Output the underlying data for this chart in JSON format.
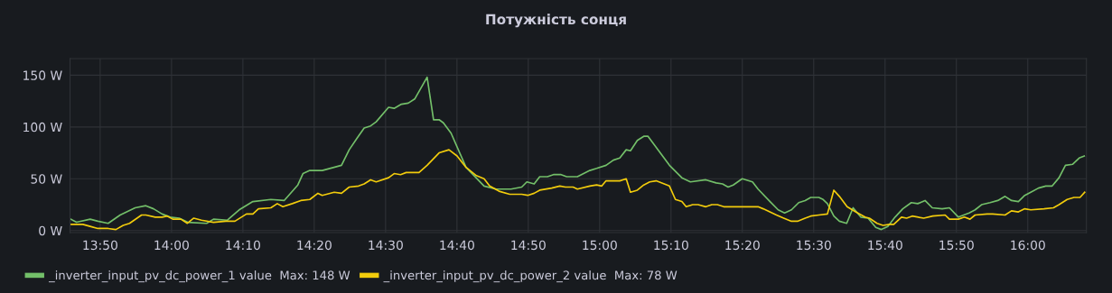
{
  "chart_data": {
    "type": "line",
    "title": "Потужність сонця",
    "xlim": [
      13.763,
      16.137
    ],
    "xticks": [
      {
        "value": 13.8333,
        "label": "13:50"
      },
      {
        "value": 14,
        "label": "14:00"
      },
      {
        "value": 14.1667,
        "label": "14:10"
      },
      {
        "value": 14.3333,
        "label": "14:20"
      },
      {
        "value": 14.5,
        "label": "14:30"
      },
      {
        "value": 14.6667,
        "label": "14:40"
      },
      {
        "value": 14.8333,
        "label": "14:50"
      },
      {
        "value": 15,
        "label": "15:00"
      },
      {
        "value": 15.1667,
        "label": "15:10"
      },
      {
        "value": 15.3333,
        "label": "15:20"
      },
      {
        "value": 15.5,
        "label": "15:30"
      },
      {
        "value": 15.6667,
        "label": "15:40"
      },
      {
        "value": 15.8333,
        "label": "15:50"
      },
      {
        "value": 16,
        "label": "16:00"
      }
    ],
    "ylim": [
      -2,
      166
    ],
    "yticks": [
      {
        "value": 0,
        "label": "0 W"
      },
      {
        "value": 50,
        "label": "50 W"
      },
      {
        "value": 100,
        "label": "100 W"
      },
      {
        "value": 150,
        "label": "150 W"
      }
    ],
    "grid": true,
    "legend": "bottom left",
    "marker": "none",
    "line_style": "solid",
    "series": [
      {
        "name": "_inverter_input_pv_dc_power_1 value  Max: 148 W",
        "color": "#73bf69",
        "x": [
          13.765,
          13.778,
          13.81,
          13.828,
          13.852,
          13.88,
          13.915,
          13.94,
          13.958,
          13.978,
          13.997,
          14.018,
          14.038,
          14.082,
          14.098,
          14.13,
          14.158,
          14.19,
          14.232,
          14.263,
          14.295,
          14.307,
          14.323,
          14.352,
          14.397,
          14.415,
          14.433,
          14.45,
          14.465,
          14.478,
          14.507,
          14.52,
          14.537,
          14.553,
          14.568,
          14.597,
          14.612,
          14.625,
          14.635,
          14.653,
          14.688,
          14.73,
          14.758,
          14.793,
          14.818,
          14.83,
          14.847,
          14.86,
          14.878,
          14.892,
          14.91,
          14.923,
          14.948,
          14.977,
          14.993,
          15.015,
          15.032,
          15.047,
          15.062,
          15.072,
          15.088,
          15.103,
          15.113,
          15.138,
          15.163,
          15.192,
          15.212,
          15.248,
          15.272,
          15.287,
          15.3,
          15.312,
          15.333,
          15.357,
          15.37,
          15.398,
          15.417,
          15.432,
          15.448,
          15.465,
          15.48,
          15.493,
          15.512,
          15.522,
          15.532,
          15.547,
          15.56,
          15.577,
          15.592,
          15.61,
          15.627,
          15.645,
          15.658,
          15.673,
          15.69,
          15.708,
          15.728,
          15.743,
          15.76,
          15.777,
          15.8,
          15.817,
          15.838,
          15.863,
          15.877,
          15.892,
          15.912,
          15.93,
          15.947,
          15.962,
          15.978,
          15.993,
          16.007,
          16.025,
          16.042,
          16.057,
          16.073,
          16.088,
          16.105,
          16.12,
          16.132
        ],
        "values": [
          11,
          8,
          11,
          9,
          7,
          15,
          22,
          24,
          21,
          16,
          13,
          12,
          8,
          7,
          11,
          10,
          20,
          28,
          30,
          29,
          44,
          55,
          58,
          58,
          63,
          78,
          89,
          99,
          101,
          105,
          119,
          118,
          122,
          123,
          127,
          148,
          107,
          107,
          104,
          94,
          61,
          43,
          40,
          40,
          42,
          47,
          45,
          52,
          52,
          54,
          54,
          52,
          52,
          58,
          60,
          63,
          68,
          70,
          78,
          77,
          87,
          91,
          91,
          77,
          63,
          51,
          47,
          49,
          46,
          45,
          42,
          44,
          50,
          47,
          40,
          28,
          20,
          17,
          20,
          27,
          29,
          32,
          32,
          30,
          26,
          14,
          9,
          7,
          22,
          13,
          12,
          3,
          1,
          4,
          13,
          21,
          27,
          26,
          29,
          22,
          21,
          22,
          13,
          17,
          20,
          25,
          27,
          29,
          33,
          29,
          28,
          34,
          37,
          41,
          43,
          43,
          51,
          63,
          64,
          70,
          72
        ]
      },
      {
        "name": "_inverter_input_pv_dc_power_2 value  Max: 78 W",
        "color": "#f2cc0c",
        "x": [
          13.765,
          13.793,
          13.81,
          13.828,
          13.852,
          13.87,
          13.887,
          13.902,
          13.93,
          13.94,
          13.962,
          13.978,
          13.99,
          14.003,
          14.022,
          14.037,
          14.052,
          14.07,
          14.098,
          14.127,
          14.148,
          14.175,
          14.19,
          14.203,
          14.232,
          14.247,
          14.26,
          14.282,
          14.302,
          14.323,
          14.342,
          14.352,
          14.38,
          14.397,
          14.415,
          14.437,
          14.45,
          14.465,
          14.478,
          14.507,
          14.52,
          14.535,
          14.548,
          14.578,
          14.597,
          14.625,
          14.648,
          14.667,
          14.688,
          14.712,
          14.73,
          14.743,
          14.765,
          14.79,
          14.818,
          14.832,
          14.847,
          14.86,
          14.888,
          14.907,
          14.92,
          14.938,
          14.948,
          14.977,
          14.993,
          15.005,
          15.015,
          15.047,
          15.062,
          15.072,
          15.088,
          15.103,
          15.117,
          15.132,
          15.163,
          15.177,
          15.192,
          15.202,
          15.217,
          15.23,
          15.248,
          15.262,
          15.275,
          15.29,
          15.303,
          15.328,
          15.347,
          15.36,
          15.37,
          15.382,
          15.413,
          15.43,
          15.448,
          15.462,
          15.48,
          15.493,
          15.512,
          15.532,
          15.547,
          15.56,
          15.578,
          15.598,
          15.62,
          15.63,
          15.648,
          15.662,
          15.677,
          15.687,
          15.705,
          15.717,
          15.73,
          15.757,
          15.778,
          15.807,
          15.817,
          15.838,
          15.852,
          15.865,
          15.877,
          15.905,
          15.918,
          15.947,
          15.962,
          15.978,
          15.993,
          16.007,
          16.038,
          16.06,
          16.073,
          16.092,
          16.108,
          16.122,
          16.133
        ],
        "values": [
          6,
          6,
          4,
          2,
          2,
          1,
          5,
          7,
          15,
          15,
          13,
          13,
          14,
          11,
          11,
          7,
          12,
          10,
          8,
          9,
          9,
          16,
          16,
          21,
          22,
          26,
          23,
          26,
          29,
          30,
          36,
          34,
          37,
          36,
          42,
          43,
          45,
          49,
          47,
          51,
          55,
          54,
          56,
          56,
          63,
          75,
          78,
          72,
          61,
          53,
          50,
          43,
          38,
          35,
          35,
          34,
          36,
          39,
          41,
          43,
          42,
          42,
          40,
          43,
          44,
          43,
          48,
          48,
          50,
          37,
          39,
          44,
          47,
          48,
          43,
          30,
          28,
          23,
          25,
          25,
          23,
          25,
          25,
          23,
          23,
          23,
          23,
          23,
          23,
          21,
          15,
          12,
          9,
          9,
          12,
          14,
          15,
          16,
          39,
          33,
          23,
          18,
          13,
          12,
          7,
          5,
          6,
          6,
          13,
          12,
          14,
          12,
          14,
          15,
          11,
          11,
          13,
          11,
          15,
          16,
          16,
          15,
          19,
          18,
          21,
          20,
          21,
          22,
          25,
          30,
          32,
          32,
          37
        ]
      }
    ]
  }
}
